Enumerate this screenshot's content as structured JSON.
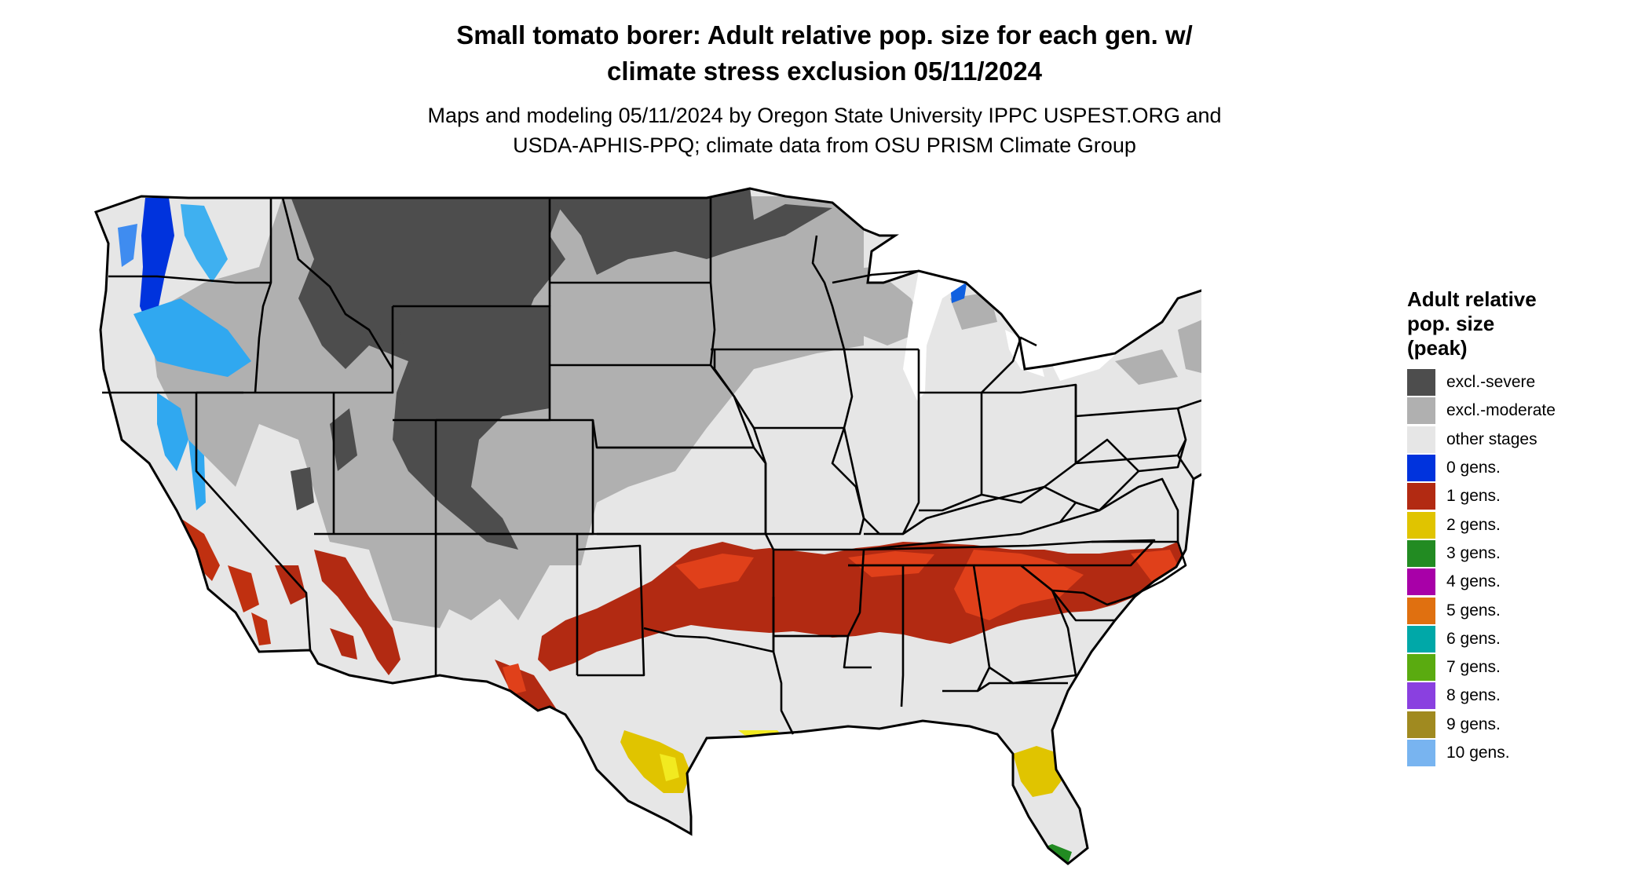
{
  "title_line1": "Small tomato borer: Adult relative pop. size for each gen. w/",
  "title_line2": "climate stress exclusion 05/11/2024",
  "subtitle_line1": "Maps and modeling 05/11/2024 by Oregon State University IPPC USPEST.ORG and",
  "subtitle_line2": "USDA-APHIS-PPQ; climate data from OSU PRISM Climate Group",
  "legend": {
    "title_lines": [
      "Adult relative",
      "pop. size",
      "(peak)"
    ],
    "items": [
      {
        "label": "excl.-severe",
        "color": "#4d4d4d"
      },
      {
        "label": "excl.-moderate",
        "color": "#b0b0b0"
      },
      {
        "label": "other stages",
        "color": "#e6e6e6"
      },
      {
        "label": "0 gens.",
        "color": "#0033dd"
      },
      {
        "label": "1 gens.",
        "color": "#b22a12"
      },
      {
        "label": "2 gens.",
        "color": "#e0c400"
      },
      {
        "label": "3 gens.",
        "color": "#228b22"
      },
      {
        "label": "4 gens.",
        "color": "#a800a8"
      },
      {
        "label": "5 gens.",
        "color": "#e07010"
      },
      {
        "label": "6 gens.",
        "color": "#00a8a8"
      },
      {
        "label": "7 gens.",
        "color": "#5aab10"
      },
      {
        "label": "8 gens.",
        "color": "#8a40e0"
      },
      {
        "label": "9 gens.",
        "color": "#a08a20"
      },
      {
        "label": "10 gens.",
        "color": "#78b4f0"
      }
    ]
  }
}
